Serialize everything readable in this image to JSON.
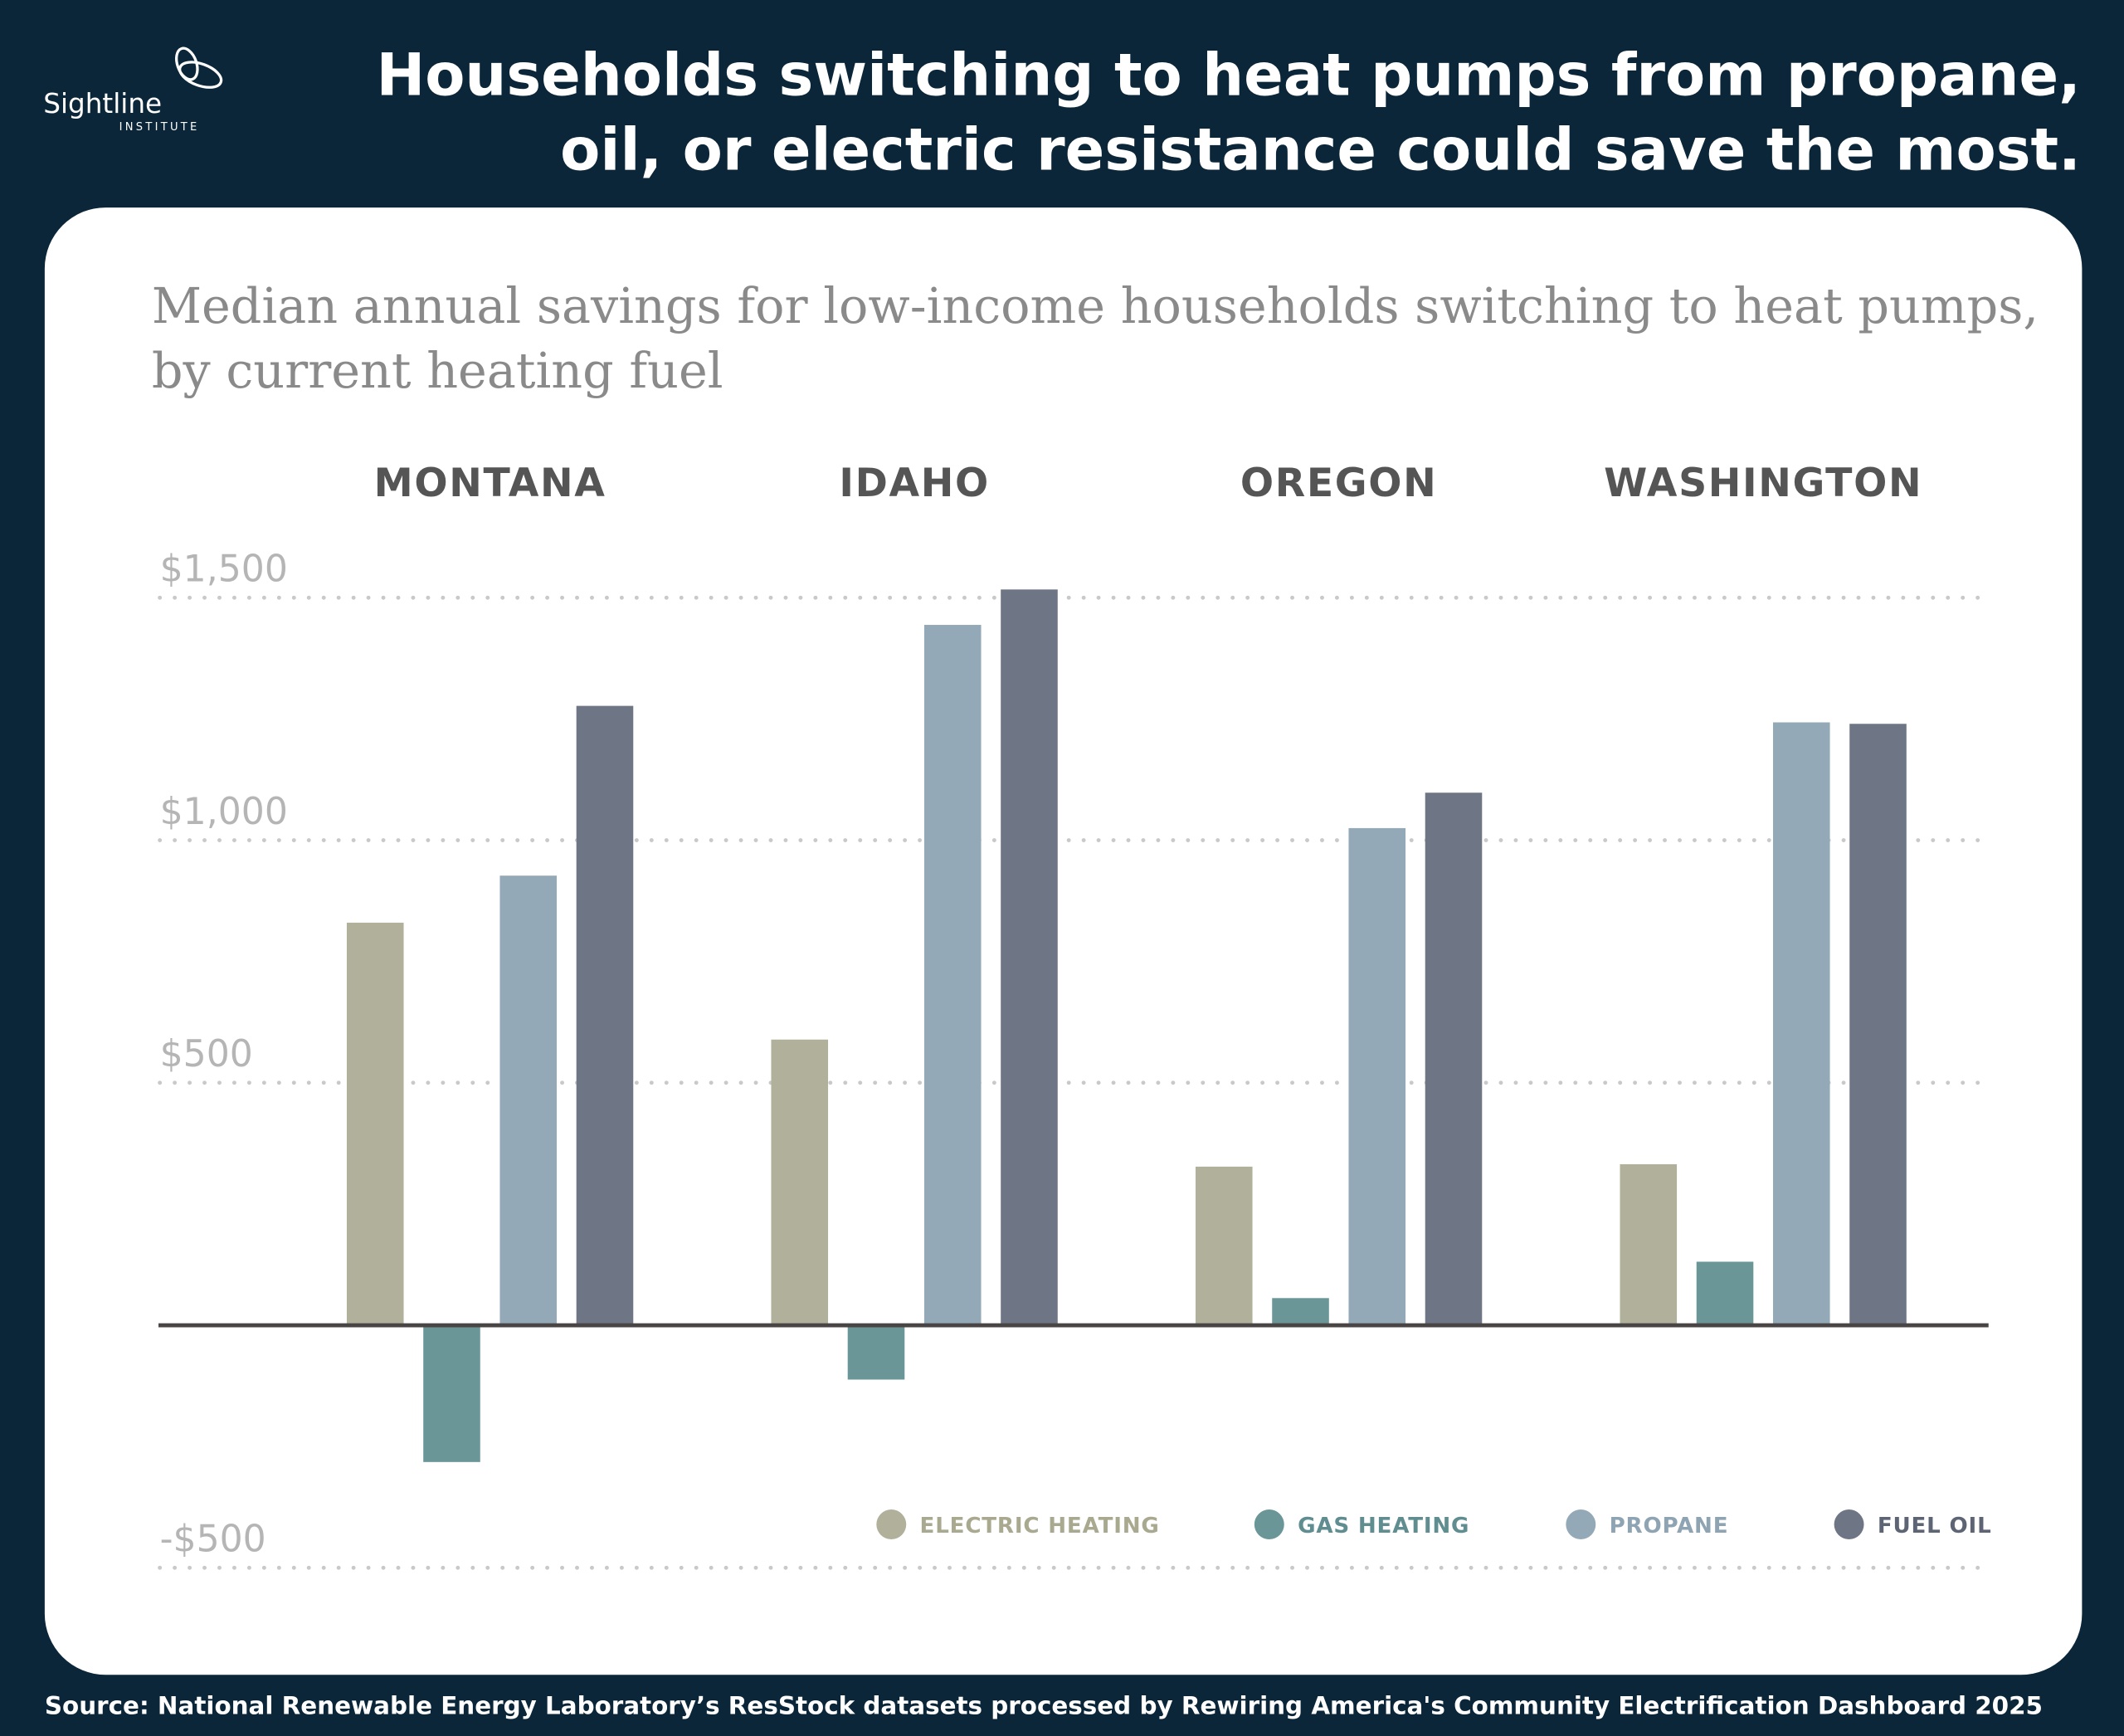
{
  "header": {
    "logo_name": "Sightline",
    "logo_sub": "INSTITUTE",
    "title_line1": "Households switching to heat pumps from propane,",
    "title_line2": "oil, or electric resistance could save the most."
  },
  "source": "Source: National Renewable Energy Laboratory’s ResStock datasets processed by Rewiring America's Community Electrification Dashboard 2025",
  "chart_data": {
    "type": "bar",
    "title": "Median annual savings for low-income households switching to heat pumps,",
    "title_line2": "by current heating fuel",
    "categories": [
      "MONTANA",
      "IDAHO",
      "OREGON",
      "WASHINGTON"
    ],
    "series": [
      {
        "name": "ELECTRIC HEATING",
        "color": "#b0b09b",
        "label_color": "#a9a98f",
        "values": [
          830,
          589,
          327,
          332
        ]
      },
      {
        "name": "GAS HEATING",
        "color": "#6a9698",
        "label_color": "#5f8d90",
        "values": [
          -282,
          -112,
          56,
          131
        ]
      },
      {
        "name": "PROPANE",
        "color": "#94a9b7",
        "label_color": "#8ea4b3",
        "values": [
          927,
          1444,
          1025,
          1243
        ]
      },
      {
        "name": "FUEL OIL",
        "color": "#6e7585",
        "label_color": "#5d6474",
        "values": [
          1277,
          1517,
          1098,
          1240
        ]
      }
    ],
    "yticks": [
      {
        "v": 1500,
        "label": "$1,500"
      },
      {
        "v": 1000,
        "label": "$1,000"
      },
      {
        "v": 500,
        "label": "$500"
      },
      {
        "v": -500,
        "label": "-$500"
      }
    ],
    "ylim": [
      -500,
      1500
    ],
    "grid": true,
    "legend": "bottom-right"
  }
}
